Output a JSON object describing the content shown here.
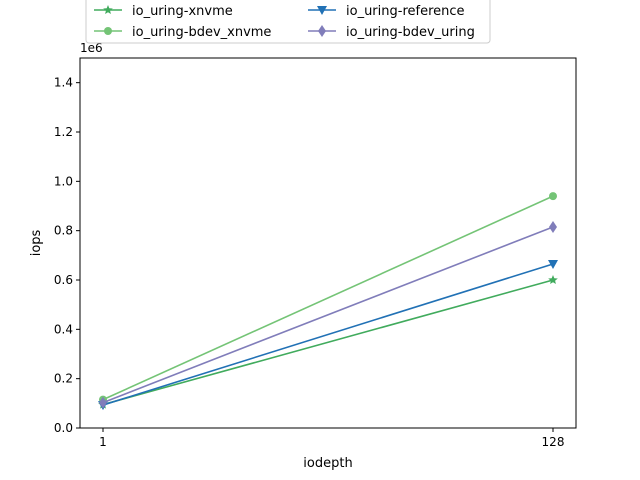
{
  "chart_data": {
    "type": "line",
    "title": "",
    "xlabel": "iodepth",
    "ylabel": "iops",
    "y_offset_label": "1e6",
    "x_categories": [
      "1",
      "128"
    ],
    "ylim": [
      0,
      1500000
    ],
    "yticks": [
      0,
      200000,
      400000,
      600000,
      800000,
      1000000,
      1200000,
      1400000
    ],
    "ytick_labels": [
      "0.0",
      "0.2",
      "0.4",
      "0.6",
      "0.8",
      "1.0",
      "1.2",
      "1.4"
    ],
    "grid": false,
    "legend_position": "top",
    "series": [
      {
        "name": "io_uring-xnvme",
        "values": [
          95000,
          600000
        ],
        "color": "#41ab5d",
        "marker": "star"
      },
      {
        "name": "io_uring-bdev_xnvme",
        "values": [
          115000,
          940000
        ],
        "color": "#74c476",
        "marker": "circle"
      },
      {
        "name": "io_uring-reference",
        "values": [
          93000,
          665000
        ],
        "color": "#2171b5",
        "marker": "triangle-down"
      },
      {
        "name": "io_uring-bdev_uring",
        "values": [
          103000,
          815000
        ],
        "color": "#807dba",
        "marker": "diamond"
      }
    ]
  }
}
